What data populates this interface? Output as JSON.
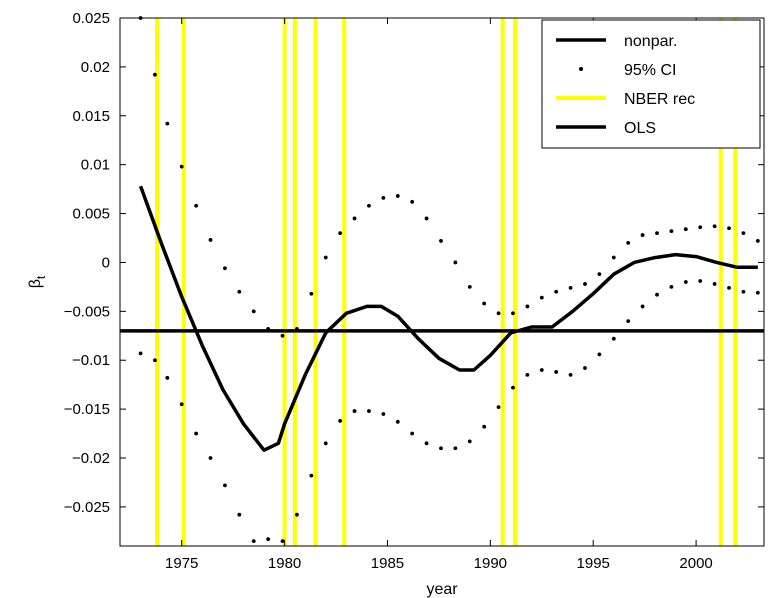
{
  "chart_data": {
    "type": "line",
    "xlabel": "year",
    "ylabel": "β",
    "ylabel_subscript": "t",
    "xlim": [
      1972,
      2003.3
    ],
    "ylim": [
      -0.029,
      0.025
    ],
    "x_ticks": [
      1975,
      1980,
      1985,
      1990,
      1995,
      2000
    ],
    "x_tick_labels": [
      "1975",
      "1980",
      "1985",
      "1990",
      "1995",
      "2000"
    ],
    "y_ticks": [
      0.025,
      0.02,
      0.015,
      0.01,
      0.005,
      0,
      -0.005,
      -0.01,
      -0.015,
      -0.02,
      -0.025
    ],
    "y_tick_labels": [
      "0.025",
      "0.02",
      "0.015",
      "0.01",
      "0.005",
      "0",
      "−0.005",
      "−0.01",
      "−0.015",
      "−0.02",
      "−0.025"
    ],
    "grid": false,
    "legend_position": "top-right",
    "legend": [
      {
        "label": "nonpar.",
        "style": "solid-line",
        "color": "#000000"
      },
      {
        "label": "95% CI",
        "style": "dots",
        "color": "#000000"
      },
      {
        "label": "NBER rec",
        "style": "solid-line",
        "color": "#ffff00"
      },
      {
        "label": "OLS",
        "style": "solid-line",
        "color": "#000000"
      }
    ],
    "series": [
      {
        "name": "nonpar.",
        "color": "#000000",
        "x": [
          1973,
          1974,
          1975,
          1976,
          1977,
          1978,
          1979,
          1979.7,
          1980,
          1981,
          1982,
          1983,
          1984,
          1984.7,
          1985.5,
          1986.5,
          1987.5,
          1988.5,
          1989.2,
          1990,
          1991,
          1992,
          1993,
          1994,
          1995,
          1996,
          1997,
          1998,
          1999,
          2000,
          2001,
          2002,
          2003
        ],
        "y": [
          0.0078,
          0.002,
          -0.0035,
          -0.0085,
          -0.013,
          -0.0165,
          -0.0192,
          -0.0185,
          -0.0165,
          -0.0115,
          -0.0072,
          -0.0052,
          -0.0045,
          -0.0045,
          -0.0055,
          -0.0078,
          -0.0098,
          -0.011,
          -0.011,
          -0.0095,
          -0.0072,
          -0.0066,
          -0.0066,
          -0.005,
          -0.0032,
          -0.0012,
          0.0,
          0.0005,
          0.0008,
          0.0006,
          0.0,
          -0.0005,
          -0.0005
        ]
      },
      {
        "name": "95% CI",
        "color": "#000000",
        "x": [
          1973,
          1973.7,
          1974.3,
          1975,
          1975.7,
          1976.4,
          1977.1,
          1977.8,
          1978.5,
          1979.2,
          1979.9,
          1980.6,
          1981.3,
          1982,
          1982.7,
          1983.4,
          1984.1,
          1984.8,
          1985.5,
          1986.2,
          1986.9,
          1987.6,
          1988.3,
          1989,
          1989.7,
          1990.4,
          1991.1,
          1991.8,
          1992.5,
          1993.2,
          1993.9,
          1994.6,
          1995.3,
          1996,
          1996.7,
          1997.4,
          1998.1,
          1998.8,
          1999.5,
          2000.2,
          2000.9,
          2001.6,
          2002.3,
          2003
        ],
        "y": [
          0.025,
          0.0192,
          0.0142,
          0.0098,
          0.0058,
          0.0023,
          -0.0006,
          -0.003,
          -0.005,
          -0.0068,
          -0.0075,
          -0.0068,
          -0.0032,
          0.0005,
          0.003,
          0.0045,
          0.0058,
          0.0066,
          0.0068,
          0.0062,
          0.0045,
          0.0022,
          0.0,
          -0.0025,
          -0.0042,
          -0.0052,
          -0.0052,
          -0.0045,
          -0.0036,
          -0.003,
          -0.0026,
          -0.0022,
          -0.0012,
          0.0005,
          0.002,
          0.0028,
          0.003,
          0.0032,
          0.0034,
          0.0036,
          0.0037,
          0.0035,
          0.003,
          0.0022
        ]
      },
      {
        "name": "95% CI",
        "color": "#000000",
        "x": [
          1973,
          1973.7,
          1974.3,
          1975,
          1975.7,
          1976.4,
          1977.1,
          1977.8,
          1978.5,
          1979.2,
          1979.9,
          1980.6,
          1981.3,
          1982,
          1982.7,
          1983.4,
          1984.1,
          1984.8,
          1985.5,
          1986.2,
          1986.9,
          1987.6,
          1988.3,
          1989,
          1989.7,
          1990.4,
          1991.1,
          1991.8,
          1992.5,
          1993.2,
          1993.9,
          1994.6,
          1995.3,
          1996,
          1996.7,
          1997.4,
          1998.1,
          1998.8,
          1999.5,
          2000.2,
          2000.9,
          2001.6,
          2002.3,
          2003
        ],
        "y": [
          -0.0093,
          -0.01,
          -0.0118,
          -0.0145,
          -0.0175,
          -0.02,
          -0.0228,
          -0.0258,
          -0.0285,
          -0.0283,
          -0.0285,
          -0.0258,
          -0.0218,
          -0.0185,
          -0.0162,
          -0.0152,
          -0.0152,
          -0.0155,
          -0.0163,
          -0.0175,
          -0.0185,
          -0.019,
          -0.019,
          -0.0183,
          -0.0168,
          -0.0148,
          -0.0128,
          -0.0115,
          -0.011,
          -0.0112,
          -0.0115,
          -0.0108,
          -0.0094,
          -0.0078,
          -0.006,
          -0.0045,
          -0.0033,
          -0.0025,
          -0.002,
          -0.0019,
          -0.0022,
          -0.0026,
          -0.003,
          -0.0031
        ]
      },
      {
        "name": "OLS",
        "color": "#000000",
        "x": [
          1972,
          2003.3
        ],
        "y": [
          -0.007,
          -0.007
        ]
      }
    ],
    "recession_lines": [
      1973.8,
      1975.1,
      1980.0,
      1980.5,
      1981.5,
      1982.9,
      1990.6,
      1991.2,
      2001.2,
      2001.9
    ],
    "recession_color": "#ffff00"
  }
}
